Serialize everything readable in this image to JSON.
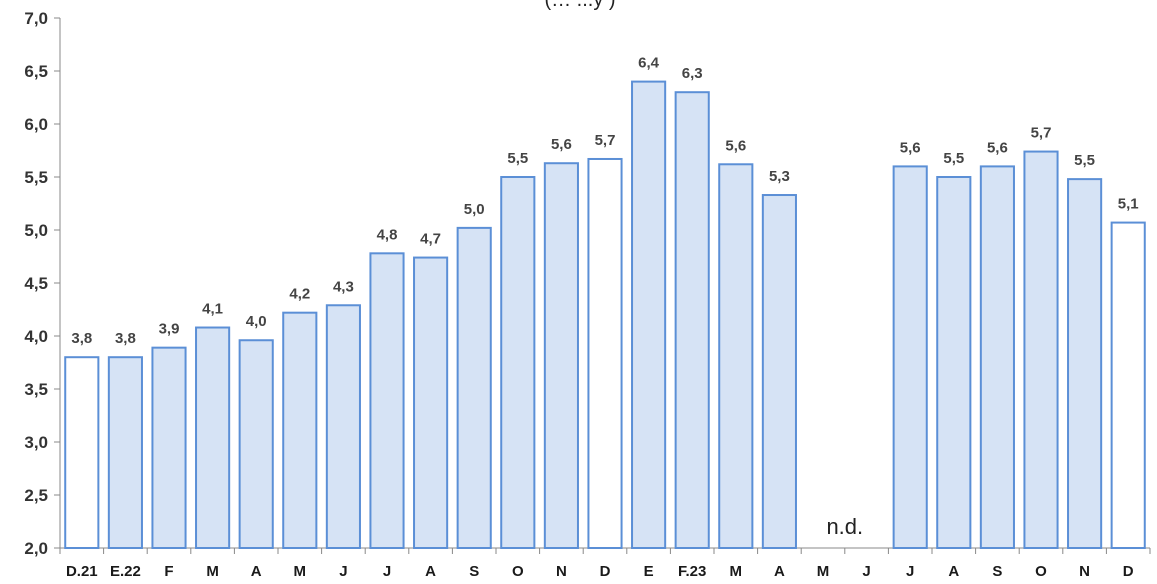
{
  "chart_data": {
    "type": "bar",
    "title": "(… ...y )",
    "categories": [
      "D.21",
      "E.22",
      "F",
      "M",
      "A",
      "M",
      "J",
      "J",
      "A",
      "S",
      "O",
      "N",
      "D",
      "E",
      "F.23",
      "M",
      "A",
      "M",
      "J",
      "J",
      "A",
      "S",
      "O",
      "N",
      "D"
    ],
    "values": [
      3.8,
      3.8,
      3.89,
      4.08,
      3.96,
      4.22,
      4.29,
      4.78,
      4.74,
      5.02,
      5.5,
      5.63,
      5.67,
      6.4,
      6.3,
      5.62,
      5.33,
      null,
      null,
      5.6,
      5.5,
      5.6,
      5.74,
      5.48,
      5.07
    ],
    "data_labels": [
      "3,8",
      "3,8",
      "3,9",
      "4,1",
      "4,0",
      "4,2",
      "4,3",
      "4,8",
      "4,7",
      "5,0",
      "5,5",
      "5,6",
      "5,7",
      "6,4",
      "6,3",
      "5,6",
      "5,3",
      "",
      "",
      "5,6",
      "5,5",
      "5,6",
      "5,7",
      "5,5",
      "5,1"
    ],
    "highlighted": [
      true,
      false,
      false,
      false,
      false,
      false,
      false,
      false,
      false,
      false,
      false,
      false,
      true,
      false,
      false,
      false,
      false,
      false,
      false,
      false,
      false,
      false,
      false,
      false,
      true
    ],
    "ylim": [
      2.0,
      7.0
    ],
    "yticks": [
      2.0,
      2.5,
      3.0,
      3.5,
      4.0,
      4.5,
      5.0,
      5.5,
      6.0,
      6.5,
      7.0
    ],
    "ytick_labels": [
      "2,0",
      "2,5",
      "3,0",
      "3,5",
      "4,0",
      "4,5",
      "5,0",
      "5,5",
      "6,0",
      "6,5",
      "7,0"
    ],
    "missing_label": "n.d.",
    "xlabel": "",
    "ylabel": "",
    "grid": false,
    "colors": {
      "bar_fill": "#d6e3f5",
      "bar_stroke": "#5b8fd6",
      "highlight_fill": "#ffffff",
      "axis": "#888888"
    }
  }
}
